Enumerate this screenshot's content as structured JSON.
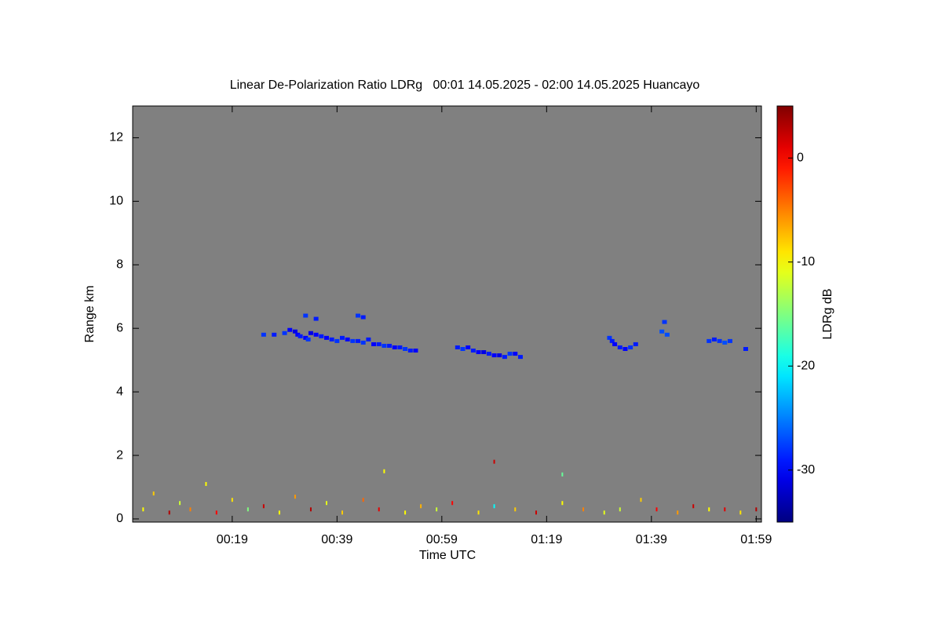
{
  "chart_data": {
    "type": "heatmap",
    "title": "Linear De-Polarization Ratio LDRg   00:01 14.05.2025 - 02:00 14.05.2025 Huancayo",
    "x_label": "Time UTC",
    "y_label": "Range km",
    "colorbar_label": "LDRg dB",
    "colormap": "jet",
    "background_color": "#808080",
    "xlim": [
      0,
      120
    ],
    "xticks": [
      {
        "value": 19,
        "label": "00:19"
      },
      {
        "value": 39,
        "label": "00:39"
      },
      {
        "value": 59,
        "label": "00:59"
      },
      {
        "value": 79,
        "label": "01:19"
      },
      {
        "value": 99,
        "label": "01:39"
      },
      {
        "value": 119,
        "label": "01:59"
      }
    ],
    "ylim": [
      -0.1,
      13
    ],
    "yticks": [
      0,
      2,
      4,
      6,
      8,
      10,
      12
    ],
    "zlim": [
      -35,
      5
    ],
    "zticks": [
      0,
      -10,
      -20,
      -30
    ],
    "cells": {
      "x": [
        25,
        27,
        29,
        30,
        31,
        31.5,
        32,
        33,
        33.5,
        34,
        35,
        36,
        37,
        38,
        39,
        40,
        41,
        42,
        43,
        44,
        45,
        46,
        47,
        48,
        49,
        50,
        51,
        52,
        53,
        54,
        43,
        44,
        33,
        35,
        62,
        63,
        64,
        65,
        66,
        67,
        68,
        69,
        70,
        71,
        72,
        73,
        74,
        91,
        91.5,
        92,
        93,
        94,
        95,
        96,
        101,
        101.5,
        102,
        110,
        111,
        112,
        113,
        114,
        117,
        2,
        4,
        7,
        9,
        11,
        14,
        16,
        19,
        22,
        25,
        28,
        31,
        34,
        37,
        40,
        44,
        47,
        52,
        55,
        58,
        61,
        66,
        69,
        73,
        77,
        82,
        86,
        90,
        93,
        97,
        100,
        104,
        107,
        110,
        113,
        116,
        119,
        48,
        69,
        82
      ],
      "y": [
        5.8,
        5.8,
        5.85,
        5.95,
        5.9,
        5.8,
        5.75,
        5.7,
        5.65,
        5.85,
        5.8,
        5.75,
        5.7,
        5.65,
        5.6,
        5.7,
        5.65,
        5.6,
        5.6,
        5.55,
        5.65,
        5.5,
        5.5,
        5.45,
        5.45,
        5.4,
        5.4,
        5.35,
        5.3,
        5.3,
        6.4,
        6.35,
        6.4,
        6.3,
        5.4,
        5.35,
        5.4,
        5.3,
        5.25,
        5.25,
        5.2,
        5.15,
        5.15,
        5.1,
        5.2,
        5.2,
        5.1,
        5.7,
        5.6,
        5.5,
        5.4,
        5.35,
        5.4,
        5.5,
        5.9,
        6.2,
        5.8,
        5.6,
        5.65,
        5.6,
        5.55,
        5.6,
        5.35,
        0.3,
        0.8,
        0.2,
        0.5,
        0.3,
        1.1,
        0.2,
        0.6,
        0.3,
        0.4,
        0.2,
        0.7,
        0.3,
        0.5,
        0.2,
        0.6,
        0.3,
        0.2,
        0.4,
        0.3,
        0.5,
        0.2,
        0.4,
        0.3,
        0.2,
        0.5,
        0.3,
        0.2,
        0.3,
        0.6,
        0.3,
        0.2,
        0.4,
        0.3,
        0.3,
        0.2,
        0.3,
        1.5,
        1.8,
        1.4
      ],
      "z": [
        -28,
        -29,
        -28,
        -30,
        -31,
        -30,
        -29,
        -30,
        -28,
        -31,
        -30,
        -29,
        -30,
        -29,
        -28,
        -29,
        -30,
        -28,
        -29,
        -28,
        -29,
        -30,
        -29,
        -28,
        -29,
        -30,
        -29,
        -28,
        -29,
        -30,
        -28,
        -29,
        -28,
        -29,
        -29,
        -28,
        -30,
        -29,
        -30,
        -31,
        -29,
        -30,
        -31,
        -29,
        -28,
        -30,
        -29,
        -28,
        -29,
        -30,
        -29,
        -30,
        -28,
        -29,
        -27,
        -28,
        -27,
        -28,
        -29,
        -28,
        -27,
        -28,
        -29,
        -10,
        -8,
        3,
        -12,
        -5,
        -10,
        0,
        -9,
        -15,
        2,
        -10,
        -6,
        3,
        -11,
        -8,
        -4,
        1,
        -10,
        -7,
        -12,
        0,
        -9,
        -20,
        -8,
        2,
        -10,
        -5,
        -11,
        -12,
        -8,
        0,
        -6,
        2,
        -10,
        1,
        -9,
        3,
        -10,
        2,
        -16
      ]
    }
  }
}
